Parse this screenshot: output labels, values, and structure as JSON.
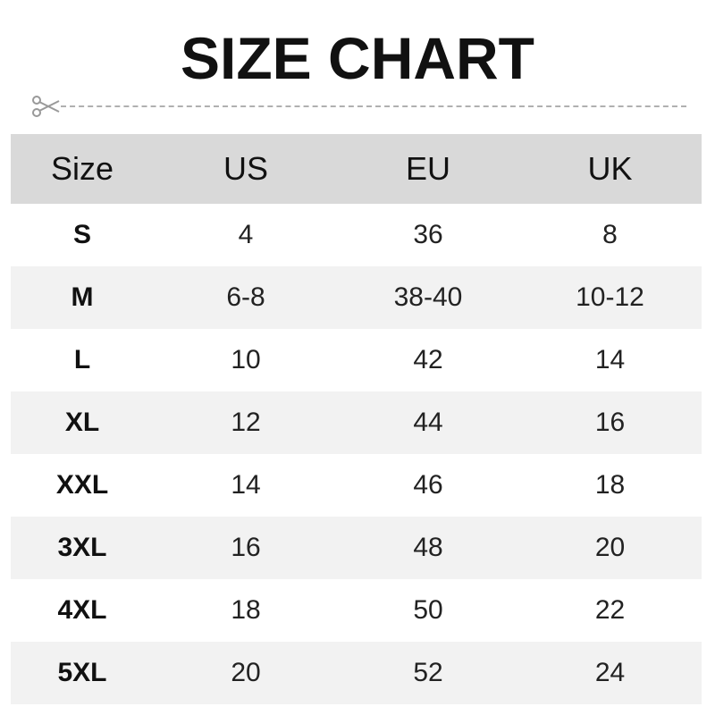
{
  "title": "SIZE CHART",
  "icons": {
    "cut_line": "scissors-icon"
  },
  "colors": {
    "header_bg": "#d9d9d9",
    "alt_row_bg": "#f2f2f2"
  },
  "table": {
    "headers": [
      "Size",
      "US",
      "EU",
      "UK"
    ],
    "rows": [
      [
        "S",
        "4",
        "36",
        "8"
      ],
      [
        "M",
        "6-8",
        "38-40",
        "10-12"
      ],
      [
        "L",
        "10",
        "42",
        "14"
      ],
      [
        "XL",
        "12",
        "44",
        "16"
      ],
      [
        "XXL",
        "14",
        "46",
        "18"
      ],
      [
        "3XL",
        "16",
        "48",
        "20"
      ],
      [
        "4XL",
        "18",
        "50",
        "22"
      ],
      [
        "5XL",
        "20",
        "52",
        "24"
      ]
    ]
  }
}
